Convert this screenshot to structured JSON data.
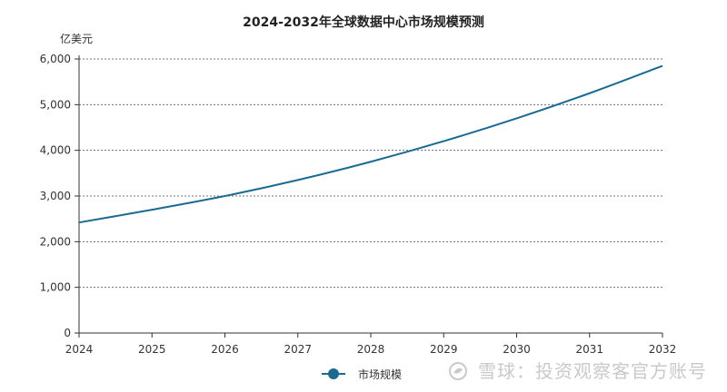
{
  "chart_data": {
    "type": "line",
    "title": "2024-2032年全球数据中心市场规模预测",
    "ylabel": "亿美元",
    "xlabel": "",
    "x": [
      "2024",
      "2025",
      "2026",
      "2027",
      "2028",
      "2029",
      "2030",
      "2031",
      "2032"
    ],
    "ylim": [
      0,
      6000
    ],
    "yticks": [
      0,
      1000,
      2000,
      3000,
      4000,
      5000,
      6000
    ],
    "ytick_labels": [
      "0",
      "1,000",
      "2,000",
      "3,000",
      "4,000",
      "5,000",
      "6,000"
    ],
    "grid": true,
    "legend_position": "bottom",
    "series": [
      {
        "name": "市场规模",
        "color": "#1b6a92",
        "values": [
          2420,
          2700,
          3000,
          3350,
          3750,
          4200,
          4700,
          5250,
          5850
        ]
      }
    ]
  },
  "watermark": {
    "text": "雪球：投资观察客官方账号",
    "icon": "snowball-logo-icon"
  }
}
